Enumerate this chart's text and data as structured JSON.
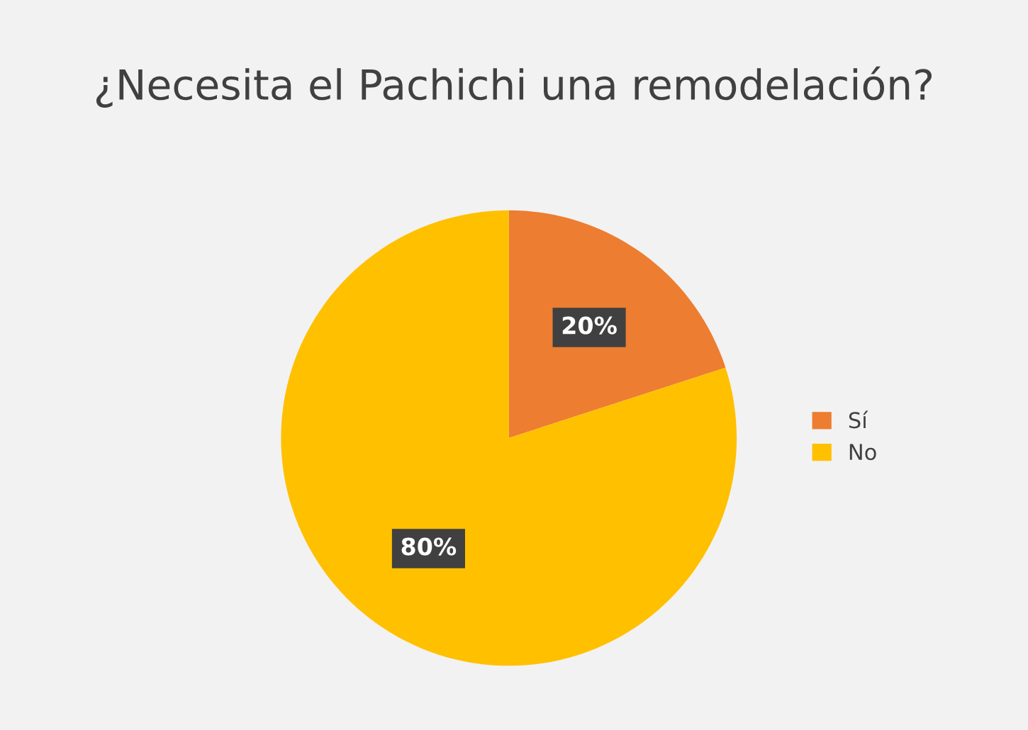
{
  "chart_data": {
    "type": "pie",
    "title": "¿Necesita el Pachichi una remodelación?",
    "categories": [
      "Sí",
      "No"
    ],
    "values": [
      20,
      80
    ],
    "colors": [
      "#ed7d31",
      "#ffc000"
    ],
    "value_labels": [
      "20%",
      "80%"
    ],
    "legend": "right"
  }
}
